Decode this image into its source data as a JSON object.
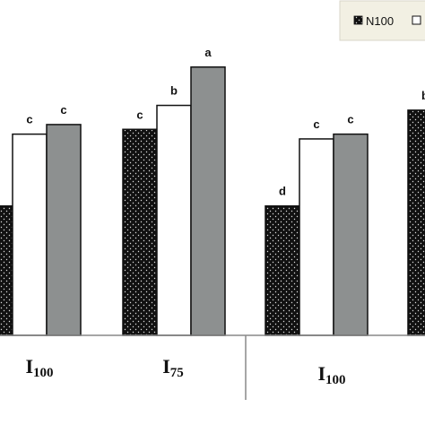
{
  "chart_data": {
    "type": "bar",
    "groups": [
      {
        "label_main": "I",
        "label_sub": "100",
        "values": [
          27,
          42,
          44
        ],
        "letters": [
          "",
          "c",
          "c"
        ]
      },
      {
        "label_main": "I",
        "label_sub": "75",
        "values": [
          43,
          48,
          56
        ],
        "letters": [
          "c",
          "b",
          "a"
        ]
      },
      {
        "label_main": "I",
        "label_sub": "100",
        "values": [
          27,
          41,
          42
        ],
        "letters": [
          "d",
          "c",
          "c"
        ]
      },
      {
        "label_main": "",
        "label_sub": "",
        "values": [
          47
        ],
        "letters": [
          "b"
        ]
      }
    ],
    "series": [
      {
        "name": "N100",
        "fill": "dotted-black"
      },
      {
        "name": "",
        "fill": "white"
      },
      {
        "name": "",
        "fill": "gray"
      }
    ],
    "legend": {
      "placement": "top-right",
      "entries": [
        "N100"
      ]
    },
    "ylim": [
      0,
      70
    ],
    "grid": false
  },
  "colors": {
    "dotted": "#111111",
    "white_bar": "#ffffff",
    "gray_bar": "#8d9090",
    "legend_bg": "#f2f0e3",
    "axis": "#888888"
  }
}
